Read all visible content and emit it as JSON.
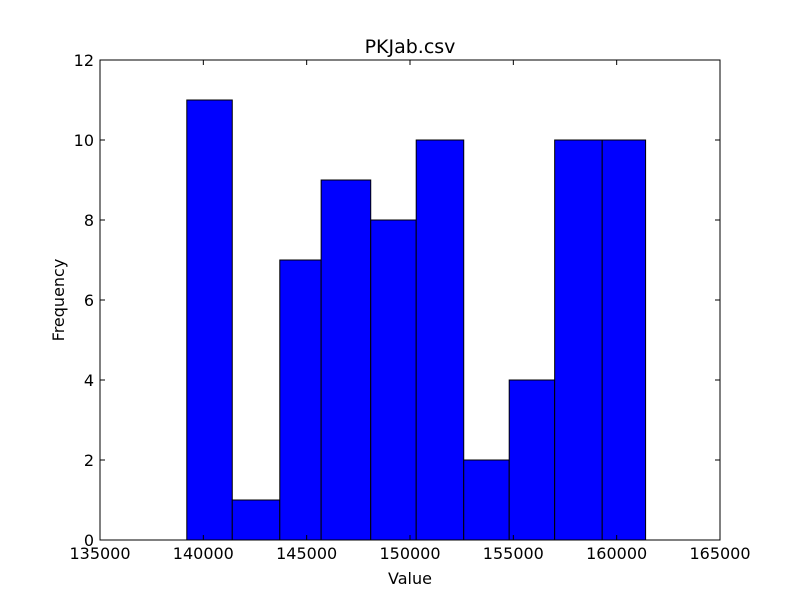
{
  "chart_data": {
    "type": "bar",
    "title": "PKJab.csv",
    "xlabel": "Value",
    "ylabel": "Frequency",
    "xlim": [
      135000,
      165000
    ],
    "ylim": [
      0,
      12
    ],
    "xticks": [
      135000,
      140000,
      145000,
      150000,
      155000,
      160000,
      165000
    ],
    "yticks": [
      0,
      2,
      4,
      6,
      8,
      10,
      12
    ],
    "grid": false,
    "bar_color": "#0000ff",
    "edge_color": "#000000",
    "bins": [
      {
        "x0": 139200,
        "x1": 141400,
        "value": 11
      },
      {
        "x0": 141400,
        "x1": 143700,
        "value": 1
      },
      {
        "x0": 143700,
        "x1": 145700,
        "value": 7
      },
      {
        "x0": 145700,
        "x1": 148100,
        "value": 9
      },
      {
        "x0": 148100,
        "x1": 150300,
        "value": 8
      },
      {
        "x0": 150300,
        "x1": 152600,
        "value": 10
      },
      {
        "x0": 152600,
        "x1": 154800,
        "value": 2
      },
      {
        "x0": 154800,
        "x1": 157000,
        "value": 4
      },
      {
        "x0": 157000,
        "x1": 159300,
        "value": 10
      },
      {
        "x0": 159300,
        "x1": 161400,
        "value": 10
      }
    ]
  }
}
